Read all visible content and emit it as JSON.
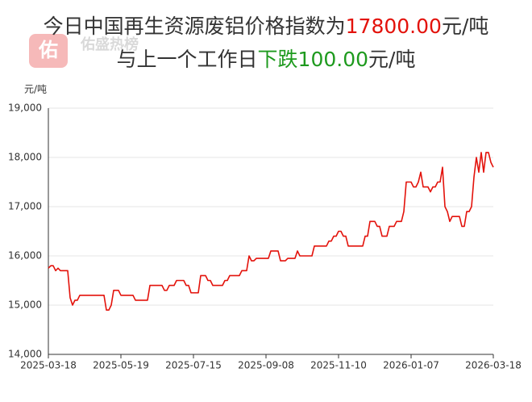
{
  "watermark": {
    "icon": "佑",
    "name": "佑盛热榜"
  },
  "chart_data": {
    "type": "line",
    "title_line1": [
      "今日中国再生资源废铝价格指数为",
      "17800.00",
      "元/吨"
    ],
    "title_line2": [
      "与上一个工作日",
      "下跌100.00",
      "元/吨"
    ],
    "y_unit": "元/吨",
    "color": "#e3120b",
    "grid": true,
    "ylim": [
      14000,
      19000
    ],
    "yticks": [
      {
        "value": 14000,
        "label": "14,000"
      },
      {
        "value": 15000,
        "label": "15,000"
      },
      {
        "value": 16000,
        "label": "16,000"
      },
      {
        "value": 17000,
        "label": "17,000"
      },
      {
        "value": 18000,
        "label": "18,000"
      },
      {
        "value": 19000,
        "label": "19,000"
      }
    ],
    "categories": [
      "2025-03-18",
      null,
      null,
      null,
      null,
      null,
      null,
      null,
      null,
      null,
      null,
      null,
      null,
      null,
      null,
      null,
      null,
      null,
      null,
      null,
      null,
      null,
      null,
      null,
      null,
      null,
      null,
      null,
      null,
      null,
      "2025-05-19",
      null,
      null,
      null,
      null,
      null,
      null,
      null,
      null,
      null,
      null,
      null,
      null,
      null,
      null,
      null,
      null,
      null,
      null,
      null,
      null,
      null,
      null,
      null,
      null,
      null,
      null,
      null,
      null,
      null,
      "2025-07-15",
      null,
      null,
      null,
      null,
      null,
      null,
      null,
      null,
      null,
      null,
      null,
      null,
      null,
      null,
      null,
      null,
      null,
      null,
      null,
      null,
      null,
      null,
      null,
      null,
      null,
      null,
      null,
      null,
      null,
      "2025-09-08",
      null,
      null,
      null,
      null,
      null,
      null,
      null,
      null,
      null,
      null,
      null,
      null,
      null,
      null,
      null,
      null,
      null,
      null,
      null,
      null,
      null,
      null,
      null,
      null,
      null,
      null,
      null,
      null,
      null,
      "2025-11-10",
      null,
      null,
      null,
      null,
      null,
      null,
      null,
      null,
      null,
      null,
      null,
      null,
      null,
      null,
      null,
      null,
      null,
      null,
      null,
      null,
      null,
      null,
      null,
      null,
      null,
      null,
      null,
      null,
      null,
      "2026-01-07",
      null,
      null,
      null,
      null,
      null,
      null,
      null,
      null,
      null,
      null,
      null,
      null,
      null,
      null,
      null,
      null,
      null,
      null,
      null,
      null,
      null,
      null,
      null,
      null,
      null,
      null,
      null,
      null,
      null,
      null,
      null,
      null,
      null,
      "2026-03-18"
    ],
    "values": [
      15750,
      15800,
      15800,
      15700,
      15750,
      15700,
      15700,
      15700,
      15700,
      15150,
      15000,
      15100,
      15100,
      15200,
      15200,
      15200,
      15200,
      15200,
      15200,
      15200,
      15200,
      15200,
      15200,
      15200,
      14900,
      14900,
      15000,
      15300,
      15300,
      15300,
      15200,
      15200,
      15200,
      15200,
      15200,
      15200,
      15100,
      15100,
      15100,
      15100,
      15100,
      15100,
      15400,
      15400,
      15400,
      15400,
      15400,
      15400,
      15300,
      15300,
      15400,
      15400,
      15400,
      15500,
      15500,
      15500,
      15500,
      15400,
      15400,
      15250,
      15250,
      15250,
      15250,
      15600,
      15600,
      15600,
      15500,
      15500,
      15400,
      15400,
      15400,
      15400,
      15400,
      15500,
      15500,
      15600,
      15600,
      15600,
      15600,
      15600,
      15700,
      15700,
      15700,
      16000,
      15900,
      15900,
      15950,
      15950,
      15950,
      15950,
      15950,
      15950,
      16100,
      16100,
      16100,
      16100,
      15900,
      15900,
      15900,
      15950,
      15950,
      15950,
      15950,
      16100,
      16000,
      16000,
      16000,
      16000,
      16000,
      16000,
      16200,
      16200,
      16200,
      16200,
      16200,
      16200,
      16300,
      16300,
      16400,
      16400,
      16500,
      16500,
      16400,
      16400,
      16200,
      16200,
      16200,
      16200,
      16200,
      16200,
      16200,
      16400,
      16400,
      16700,
      16700,
      16700,
      16600,
      16600,
      16400,
      16400,
      16400,
      16600,
      16600,
      16600,
      16700,
      16700,
      16700,
      16900,
      17500,
      17500,
      17500,
      17400,
      17400,
      17500,
      17700,
      17400,
      17400,
      17400,
      17300,
      17400,
      17400,
      17500,
      17500,
      17800,
      17000,
      16900,
      16700,
      16800,
      16800,
      16800,
      16800,
      16600,
      16600,
      16900,
      16900,
      17000,
      17600,
      18000,
      17700,
      18100,
      17700,
      18100,
      18100,
      17900,
      17800
    ]
  }
}
